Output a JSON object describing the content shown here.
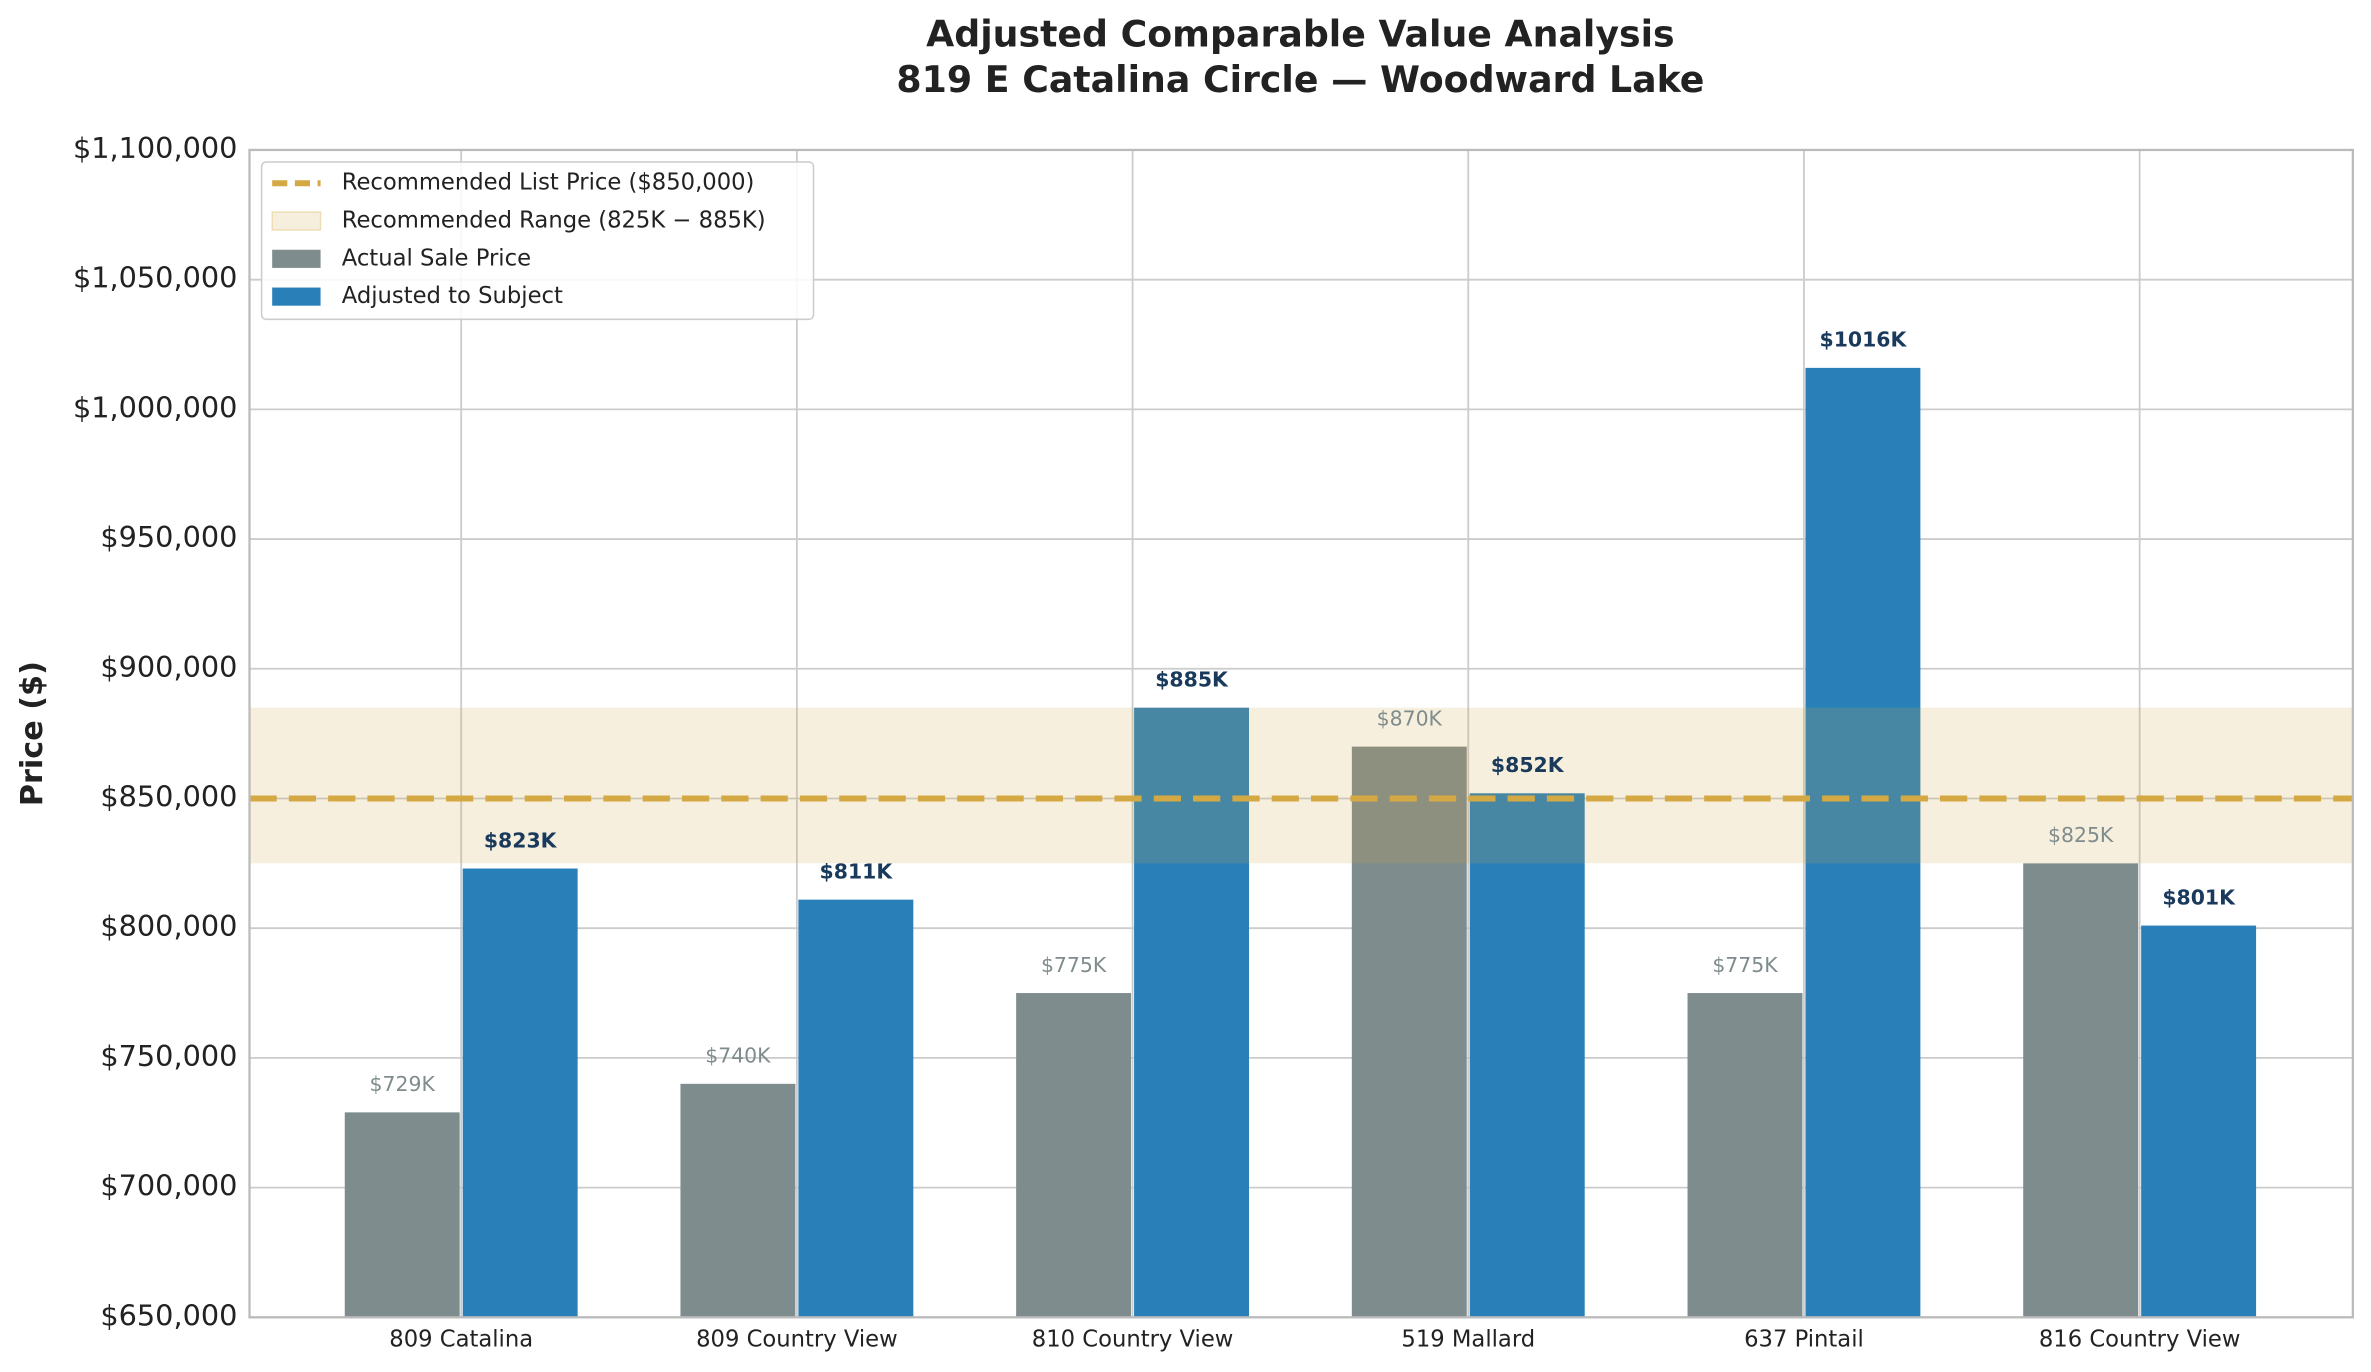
{
  "chart_data": {
    "type": "bar",
    "title": "Adjusted Comparable Value Analysis",
    "subtitle": "819 E Catalina Circle — Woodward Lake",
    "ylabel": "Price ($)",
    "categories": [
      "809 Catalina",
      "809 Country View",
      "810 Country View",
      "519 Mallard",
      "637 Pintail",
      "816 Country View"
    ],
    "series": [
      {
        "name": "Actual Sale Price",
        "color": "#7f8c8d",
        "values": [
          729000,
          740000,
          775000,
          870000,
          775000,
          825000
        ],
        "value_labels": [
          "$729K",
          "$740K",
          "$775K",
          "$870K",
          "$775K",
          "$825K"
        ]
      },
      {
        "name": "Adjusted to Subject",
        "color": "#2980b9",
        "values": [
          823000,
          811000,
          885000,
          852000,
          1016000,
          801000
        ],
        "value_labels": [
          "$823K",
          "$811K",
          "$885K",
          "$852K",
          "$1016K",
          "$801K"
        ]
      }
    ],
    "reference_line": {
      "label": "Recommended List Price ($850,000)",
      "value": 850000,
      "color": "#d4a843"
    },
    "band": {
      "label": "Recommended Range (825K − 885K)",
      "range": [
        825000,
        885000
      ],
      "color": "#d4a843"
    },
    "ylim": [
      650000,
      1100000
    ],
    "yticks": [
      {
        "value": 650000,
        "label": "$650,000"
      },
      {
        "value": 700000,
        "label": "$700,000"
      },
      {
        "value": 750000,
        "label": "$750,000"
      },
      {
        "value": 800000,
        "label": "$800,000"
      },
      {
        "value": 850000,
        "label": "$850,000"
      },
      {
        "value": 900000,
        "label": "$900,000"
      },
      {
        "value": 950000,
        "label": "$950,000"
      },
      {
        "value": 1000000,
        "label": "$1,000,000"
      },
      {
        "value": 1050000,
        "label": "$1,050,000"
      },
      {
        "value": 1100000,
        "label": "$1,100,000"
      }
    ],
    "grid": true,
    "legend": "upper left"
  }
}
